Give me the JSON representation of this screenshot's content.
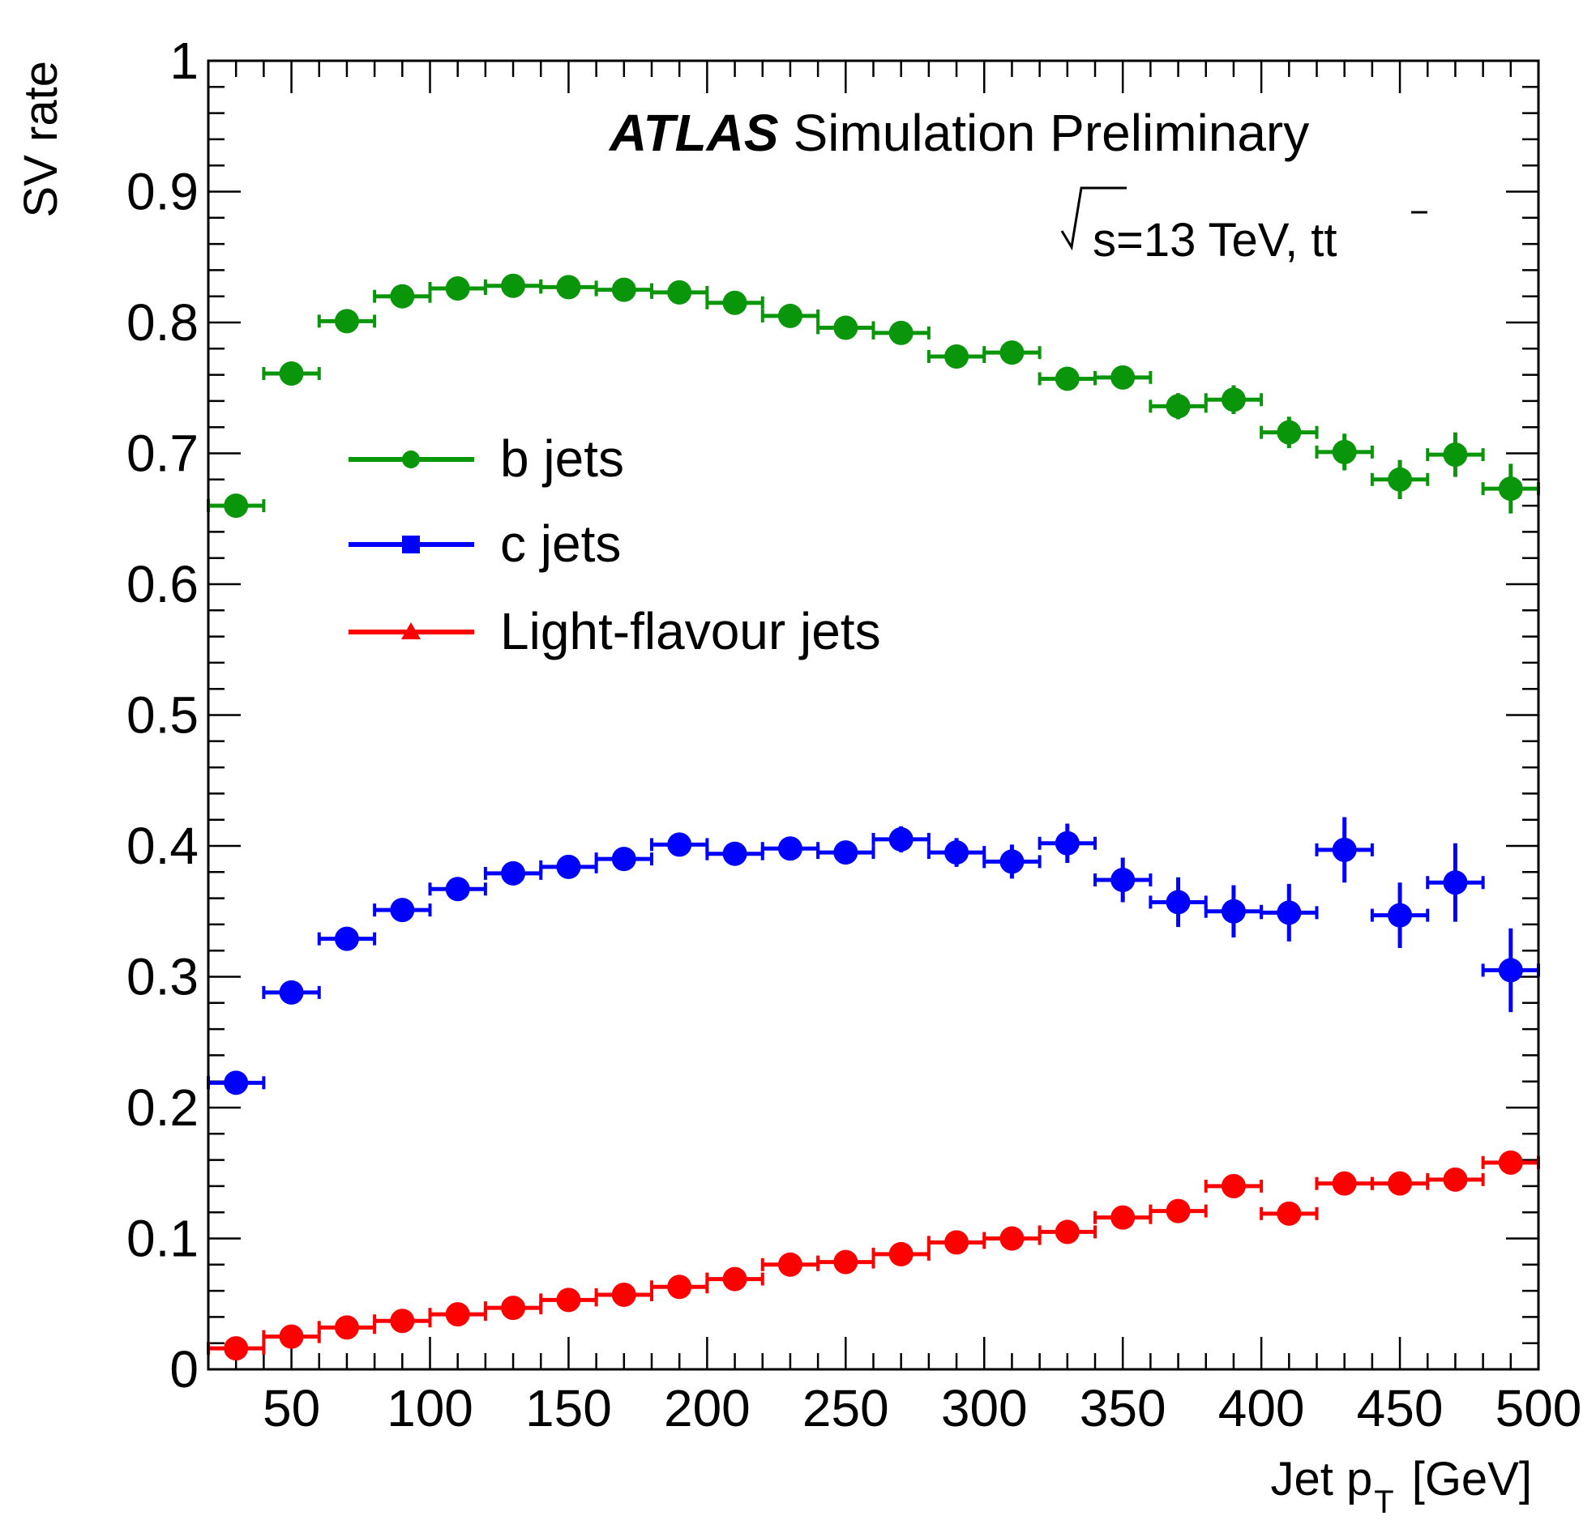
{
  "chart_data": {
    "type": "scatter",
    "title": "",
    "xlabel": "Jet p",
    "xlabel_sub": "T",
    "xlabel_unit": "[GeV]",
    "ylabel": "SV rate",
    "xlim": [
      20,
      500
    ],
    "ylim": [
      0,
      1
    ],
    "bin_width": 20,
    "x_major_ticks": [
      50,
      100,
      150,
      200,
      250,
      300,
      350,
      400,
      450,
      500
    ],
    "x_tick_labels": [
      "50",
      "100",
      "150",
      "200",
      "250",
      "300",
      "350",
      "400",
      "450",
      "500"
    ],
    "y_major_ticks": [
      0,
      0.1,
      0.2,
      0.3,
      0.4,
      0.5,
      0.6,
      0.7,
      0.8,
      0.9,
      1
    ],
    "y_tick_labels": [
      "0",
      "0.1",
      "0.2",
      "0.3",
      "0.4",
      "0.5",
      "0.6",
      "0.7",
      "0.8",
      "0.9",
      "1"
    ],
    "legend_position": "upper-left",
    "grid": false,
    "x": [
      30,
      50,
      70,
      90,
      110,
      130,
      150,
      170,
      190,
      210,
      230,
      250,
      270,
      290,
      310,
      330,
      350,
      370,
      390,
      410,
      430,
      450,
      470,
      490
    ],
    "series": [
      {
        "name": "b jets",
        "color": "#0a960a",
        "marker": "circle",
        "values": [
          0.66,
          0.761,
          0.801,
          0.82,
          0.826,
          0.828,
          0.827,
          0.825,
          0.823,
          0.815,
          0.805,
          0.796,
          0.792,
          0.774,
          0.777,
          0.757,
          0.758,
          0.736,
          0.741,
          0.716,
          0.701,
          0.68,
          0.699,
          0.673
        ],
        "errors": [
          0.004,
          0.004,
          0.004,
          0.004,
          0.004,
          0.004,
          0.004,
          0.004,
          0.004,
          0.005,
          0.005,
          0.005,
          0.006,
          0.006,
          0.007,
          0.008,
          0.009,
          0.01,
          0.011,
          0.012,
          0.014,
          0.015,
          0.017,
          0.019
        ]
      },
      {
        "name": "c jets",
        "color": "#0000ff",
        "marker": "square",
        "values": [
          0.219,
          0.288,
          0.329,
          0.351,
          0.367,
          0.379,
          0.384,
          0.39,
          0.401,
          0.394,
          0.398,
          0.395,
          0.405,
          0.395,
          0.388,
          0.402,
          0.374,
          0.357,
          0.35,
          0.349,
          0.397,
          0.347,
          0.372,
          0.305
        ],
        "errors": [
          0.004,
          0.004,
          0.004,
          0.004,
          0.005,
          0.005,
          0.005,
          0.006,
          0.006,
          0.007,
          0.008,
          0.009,
          0.01,
          0.011,
          0.013,
          0.015,
          0.017,
          0.019,
          0.02,
          0.022,
          0.025,
          0.025,
          0.03,
          0.032
        ]
      },
      {
        "name": "Light-flavour jets",
        "color": "#ff0000",
        "marker": "triangle",
        "values": [
          0.016,
          0.025,
          0.032,
          0.037,
          0.042,
          0.047,
          0.053,
          0.057,
          0.063,
          0.069,
          0.08,
          0.082,
          0.088,
          0.097,
          0.1,
          0.105,
          0.116,
          0.121,
          0.14,
          0.119,
          0.142,
          0.142,
          0.145,
          0.158
        ],
        "errors": [
          0.002,
          0.002,
          0.002,
          0.002,
          0.002,
          0.002,
          0.002,
          0.002,
          0.002,
          0.003,
          0.003,
          0.003,
          0.003,
          0.004,
          0.004,
          0.004,
          0.005,
          0.005,
          0.006,
          0.006,
          0.007,
          0.007,
          0.008,
          0.009
        ]
      }
    ],
    "annotations": {
      "experiment": "ATLAS",
      "status": "Simulation Preliminary",
      "energy": "s=13 TeV, t",
      "energy_tbar": "t"
    }
  }
}
